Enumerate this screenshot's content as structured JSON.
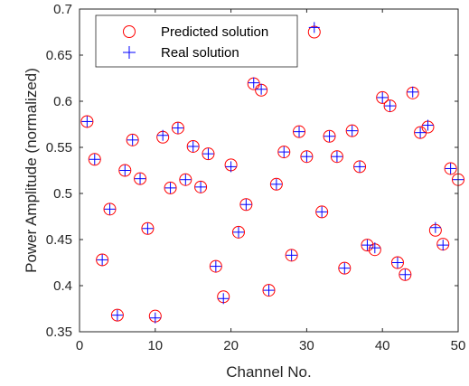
{
  "chart_data": {
    "type": "scatter",
    "title": "",
    "xlabel": "Channel No.",
    "ylabel": "Power Amplitude (normalized)",
    "xlim": [
      0,
      50
    ],
    "ylim": [
      0.35,
      0.7
    ],
    "xticks": [
      0,
      10,
      20,
      30,
      40,
      50
    ],
    "yticks": [
      0.35,
      0.4,
      0.45,
      0.5,
      0.55,
      0.6,
      0.65,
      0.7
    ],
    "xtick_labels": [
      "0",
      "10",
      "20",
      "30",
      "40",
      "50"
    ],
    "ytick_labels": [
      "0.35",
      "0.4",
      "0.45",
      "0.5",
      "0.55",
      "0.6",
      "0.65",
      "0.7"
    ],
    "grid": false,
    "box": true,
    "legend_position": "top-left",
    "x": [
      1,
      2,
      3,
      4,
      5,
      6,
      7,
      8,
      9,
      10,
      11,
      12,
      13,
      14,
      15,
      16,
      17,
      18,
      19,
      20,
      21,
      22,
      23,
      24,
      25,
      26,
      27,
      28,
      29,
      30,
      31,
      32,
      33,
      34,
      35,
      36,
      37,
      38,
      39,
      40,
      41,
      42,
      43,
      44,
      45,
      46,
      47,
      48,
      49,
      50
    ],
    "series": [
      {
        "name": "Predicted solution",
        "marker": "circle",
        "color": "#ff0000",
        "values": [
          0.578,
          0.537,
          0.428,
          0.483,
          0.368,
          0.525,
          0.558,
          0.516,
          0.462,
          0.367,
          0.561,
          0.506,
          0.571,
          0.515,
          0.551,
          0.507,
          0.543,
          0.421,
          0.388,
          0.531,
          0.458,
          0.488,
          0.619,
          0.612,
          0.395,
          0.51,
          0.545,
          0.433,
          0.567,
          0.54,
          0.675,
          0.48,
          0.562,
          0.54,
          0.419,
          0.568,
          0.529,
          0.444,
          0.439,
          0.604,
          0.595,
          0.425,
          0.412,
          0.609,
          0.566,
          0.572,
          0.46,
          0.445,
          0.527,
          0.515
        ]
      },
      {
        "name": "Real solution",
        "marker": "plus",
        "color": "#0000ff",
        "values": [
          0.578,
          0.537,
          0.428,
          0.483,
          0.368,
          0.525,
          0.558,
          0.516,
          0.462,
          0.365,
          0.563,
          0.506,
          0.571,
          0.515,
          0.551,
          0.507,
          0.543,
          0.421,
          0.386,
          0.529,
          0.458,
          0.488,
          0.62,
          0.613,
          0.395,
          0.51,
          0.545,
          0.433,
          0.567,
          0.54,
          0.68,
          0.48,
          0.562,
          0.54,
          0.419,
          0.568,
          0.529,
          0.444,
          0.441,
          0.604,
          0.595,
          0.425,
          0.412,
          0.61,
          0.566,
          0.574,
          0.463,
          0.444,
          0.527,
          0.515
        ]
      }
    ]
  }
}
